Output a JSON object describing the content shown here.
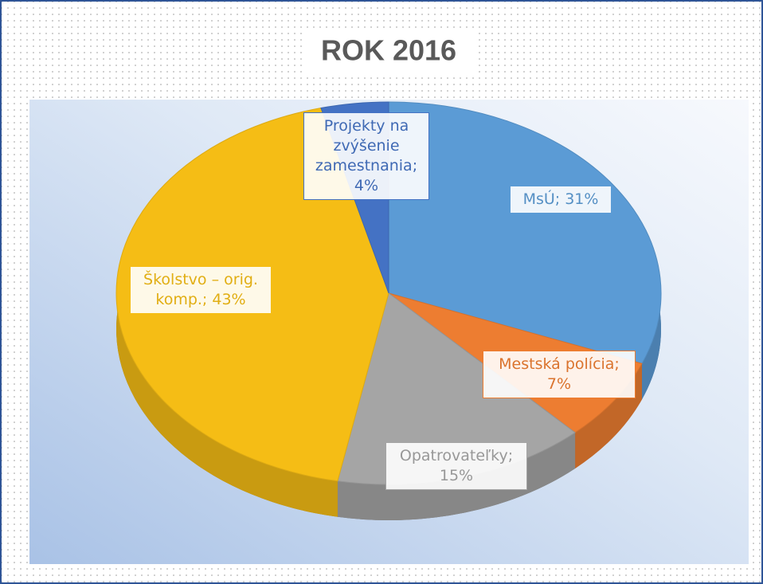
{
  "chart_data": {
    "type": "pie",
    "title": "ROK 2016",
    "values": [
      31,
      7,
      15,
      43,
      4
    ],
    "value_labels": [
      "MsÚ; 31%",
      "Mestská polícia; 7%",
      "Opatrovateľky; 15%",
      "Školstvo – orig. komp.; 43%",
      "Projekty na zvýšenie zamestnania; 4%"
    ],
    "colors": [
      "#5b9bd5",
      "#ed7d31",
      "#a5a5a5",
      "#f5bd15",
      "#4472c4"
    ]
  }
}
